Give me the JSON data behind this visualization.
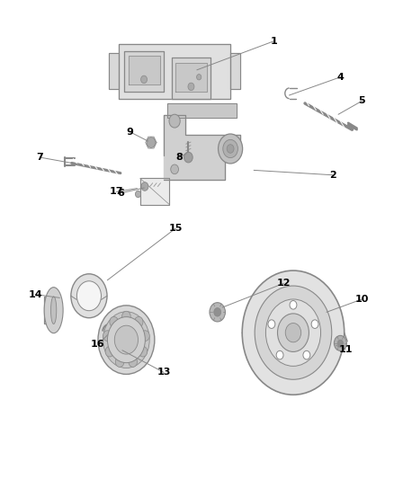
{
  "bg_color": "#ffffff",
  "line_color": "#5a5a5a",
  "label_color": "#000000",
  "figsize": [
    4.38,
    5.33
  ],
  "dpi": 100,
  "annotations": {
    "1": {
      "lp": [
        0.695,
        0.915
      ],
      "le": [
        0.5,
        0.855
      ]
    },
    "2": {
      "lp": [
        0.845,
        0.635
      ],
      "le": [
        0.645,
        0.645
      ]
    },
    "4": {
      "lp": [
        0.865,
        0.84
      ],
      "le": [
        0.735,
        0.802
      ]
    },
    "5": {
      "lp": [
        0.92,
        0.79
      ],
      "le": [
        0.86,
        0.762
      ]
    },
    "6": {
      "lp": [
        0.305,
        0.597
      ],
      "le": [
        0.365,
        0.608
      ]
    },
    "7": {
      "lp": [
        0.1,
        0.672
      ],
      "le": [
        0.195,
        0.658
      ]
    },
    "8": {
      "lp": [
        0.455,
        0.672
      ],
      "le": [
        0.473,
        0.68
      ]
    },
    "9": {
      "lp": [
        0.33,
        0.725
      ],
      "le": [
        0.375,
        0.706
      ]
    },
    "10": {
      "lp": [
        0.92,
        0.375
      ],
      "le": [
        0.83,
        0.348
      ]
    },
    "11": {
      "lp": [
        0.878,
        0.27
      ],
      "le": [
        0.855,
        0.278
      ]
    },
    "12": {
      "lp": [
        0.72,
        0.408
      ],
      "le": [
        0.565,
        0.358
      ]
    },
    "13": {
      "lp": [
        0.415,
        0.222
      ],
      "le": [
        0.31,
        0.268
      ]
    },
    "14": {
      "lp": [
        0.09,
        0.385
      ],
      "le": [
        0.15,
        0.378
      ]
    },
    "15": {
      "lp": [
        0.445,
        0.523
      ],
      "le": [
        0.272,
        0.415
      ]
    },
    "16": {
      "lp": [
        0.248,
        0.28
      ],
      "le": [
        0.272,
        0.3
      ]
    },
    "17": {
      "lp": [
        0.295,
        0.6
      ],
      "le": [
        0.347,
        0.607
      ]
    }
  }
}
